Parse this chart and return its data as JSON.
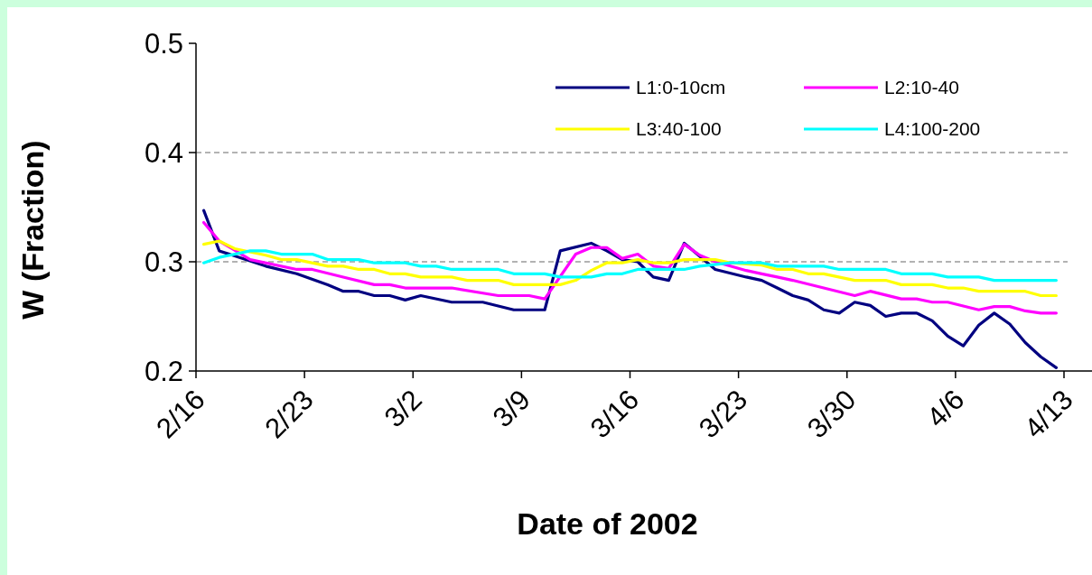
{
  "chart_data": {
    "type": "line",
    "xlabel": "Date of 2002",
    "ylabel": "W (Fraction)",
    "xlim": [
      "2002-02-16",
      "2002-04-13"
    ],
    "xticks": [
      {
        "value": "2002-02-16",
        "label": "2/16"
      },
      {
        "value": "2002-02-23",
        "label": "2/23"
      },
      {
        "value": "2002-03-02",
        "label": "3/2"
      },
      {
        "value": "2002-03-09",
        "label": "3/9"
      },
      {
        "value": "2002-03-16",
        "label": "3/16"
      },
      {
        "value": "2002-03-23",
        "label": "3/23"
      },
      {
        "value": "2002-03-30",
        "label": "3/30"
      },
      {
        "value": "2002-04-06",
        "label": "4/6"
      },
      {
        "value": "2002-04-13",
        "label": "4/13"
      }
    ],
    "ylim": [
      0.2,
      0.5
    ],
    "yticks": [
      0.2,
      0.3,
      0.4,
      0.5
    ],
    "grid": "y",
    "legend": "top right",
    "marker": "none",
    "line_style": "solid",
    "series": [
      {
        "name": "L1:0-10cm",
        "color": "#000080",
        "x": [
          "2002-02-16T12:00",
          "2002-02-17T12:00",
          "2002-02-20T12:00",
          "2002-02-22T12:00",
          "2002-02-24T12:00",
          "2002-02-25T12:00",
          "2002-02-26T12:00",
          "2002-02-27T12:00",
          "2002-02-28T12:00",
          "2002-03-01T12:00",
          "2002-03-02T12:00",
          "2002-03-04T12:00",
          "2002-03-06T12:00",
          "2002-03-08T12:00",
          "2002-03-10T12:00",
          "2002-03-11T12:00",
          "2002-03-13T12:00",
          "2002-03-14T12:00",
          "2002-03-15T12:00",
          "2002-03-16T12:00",
          "2002-03-17T12:00",
          "2002-03-18T12:00",
          "2002-03-19T12:00",
          "2002-03-21T12:00",
          "2002-03-23T12:00",
          "2002-03-24T12:00",
          "2002-03-25T12:00",
          "2002-03-26T12:00",
          "2002-03-27T12:00",
          "2002-03-28T12:00",
          "2002-03-29T12:00",
          "2002-03-30T12:00",
          "2002-03-31T12:00",
          "2002-04-01T12:00",
          "2002-04-02T12:00",
          "2002-04-03T12:00",
          "2002-04-04T12:00",
          "2002-04-05T12:00",
          "2002-04-06T12:00",
          "2002-04-07T12:00",
          "2002-04-08T12:00",
          "2002-04-09T12:00",
          "2002-04-10T12:00",
          "2002-04-11T12:00",
          "2002-04-12T12:00"
        ],
        "values": [
          0.347,
          0.31,
          0.296,
          0.289,
          0.279,
          0.273,
          0.273,
          0.269,
          0.269,
          0.265,
          0.269,
          0.263,
          0.263,
          0.256,
          0.256,
          0.31,
          0.317,
          0.31,
          0.302,
          0.3,
          0.286,
          0.283,
          0.317,
          0.293,
          0.286,
          0.283,
          0.276,
          0.269,
          0.265,
          0.256,
          0.253,
          0.263,
          0.26,
          0.25,
          0.253,
          0.253,
          0.246,
          0.232,
          0.223,
          0.242,
          0.253,
          0.243,
          0.226,
          0.213,
          0.203
        ]
      },
      {
        "name": "L2:10-40",
        "color": "#ff00ff",
        "x": [
          "2002-02-16T12:00",
          "2002-02-17T12:00",
          "2002-02-19T12:00",
          "2002-02-22T12:00",
          "2002-02-23T12:00",
          "2002-02-25T12:00",
          "2002-02-27T12:00",
          "2002-02-28T12:00",
          "2002-03-01T12:00",
          "2002-03-04T12:00",
          "2002-03-07T12:00",
          "2002-03-09T12:00",
          "2002-03-10T12:00",
          "2002-03-12T12:00",
          "2002-03-13T12:00",
          "2002-03-14T12:00",
          "2002-03-15T12:00",
          "2002-03-16T12:00",
          "2002-03-17T12:00",
          "2002-03-18T12:00",
          "2002-03-19T12:00",
          "2002-03-20T12:00",
          "2002-03-21T12:00",
          "2002-03-23T12:00",
          "2002-03-24T12:00",
          "2002-03-25T12:00",
          "2002-03-26T12:00",
          "2002-03-28T12:00",
          "2002-03-30T12:00",
          "2002-03-31T12:00",
          "2002-04-02T12:00",
          "2002-04-03T12:00",
          "2002-04-04T12:00",
          "2002-04-05T12:00",
          "2002-04-07T12:00",
          "2002-04-08T12:00",
          "2002-04-09T12:00",
          "2002-04-10T12:00",
          "2002-04-11T12:00",
          "2002-04-12T12:00"
        ],
        "values": [
          0.336,
          0.319,
          0.302,
          0.293,
          0.293,
          0.286,
          0.279,
          0.279,
          0.276,
          0.276,
          0.269,
          0.269,
          0.266,
          0.307,
          0.313,
          0.313,
          0.303,
          0.307,
          0.296,
          0.294,
          0.316,
          0.306,
          0.3,
          0.292,
          0.289,
          0.286,
          0.283,
          0.276,
          0.269,
          0.273,
          0.266,
          0.266,
          0.263,
          0.263,
          0.256,
          0.259,
          0.259,
          0.255,
          0.253,
          0.253
        ]
      },
      {
        "name": "L3:40-100",
        "color": "#ffff00",
        "x": [
          "2002-02-16T12:00",
          "2002-02-17T12:00",
          "2002-02-18T12:00",
          "2002-02-20T12:00",
          "2002-02-21T12:00",
          "2002-02-22T12:00",
          "2002-02-24T12:00",
          "2002-02-25T12:00",
          "2002-02-26T12:00",
          "2002-02-27T12:00",
          "2002-02-28T12:00",
          "2002-03-01T12:00",
          "2002-03-02T12:00",
          "2002-03-04T12:00",
          "2002-03-05T12:00",
          "2002-03-07T12:00",
          "2002-03-08T12:00",
          "2002-03-09T12:00",
          "2002-03-11T12:00",
          "2002-03-12T12:00",
          "2002-03-13T12:00",
          "2002-03-14T12:00",
          "2002-03-15T12:00",
          "2002-03-16T12:00",
          "2002-03-17T12:00",
          "2002-03-18T12:00",
          "2002-03-19T12:00",
          "2002-03-21T12:00",
          "2002-03-22T12:00",
          "2002-03-24T12:00",
          "2002-03-25T12:00",
          "2002-03-26T12:00",
          "2002-03-27T12:00",
          "2002-03-28T12:00",
          "2002-03-30T12:00",
          "2002-04-01T12:00",
          "2002-04-02T12:00",
          "2002-04-04T12:00",
          "2002-04-05T12:00",
          "2002-04-06T12:00",
          "2002-04-07T12:00",
          "2002-04-10T12:00",
          "2002-04-11T12:00",
          "2002-04-12T12:00"
        ],
        "values": [
          0.316,
          0.319,
          0.312,
          0.306,
          0.302,
          0.302,
          0.296,
          0.296,
          0.293,
          0.293,
          0.289,
          0.289,
          0.286,
          0.286,
          0.283,
          0.283,
          0.279,
          0.279,
          0.279,
          0.283,
          0.292,
          0.299,
          0.299,
          0.302,
          0.299,
          0.299,
          0.302,
          0.302,
          0.299,
          0.297,
          0.293,
          0.293,
          0.289,
          0.289,
          0.283,
          0.283,
          0.279,
          0.279,
          0.276,
          0.276,
          0.273,
          0.273,
          0.269,
          0.269
        ]
      },
      {
        "name": "L4:100-200",
        "color": "#00ffff",
        "x": [
          "2002-02-16T12:00",
          "2002-02-17T12:00",
          "2002-02-19T12:00",
          "2002-02-20T12:00",
          "2002-02-21T12:00",
          "2002-02-23T12:00",
          "2002-02-24T12:00",
          "2002-02-26T12:00",
          "2002-02-27T12:00",
          "2002-03-01T12:00",
          "2002-03-02T12:00",
          "2002-03-03T12:00",
          "2002-03-04T12:00",
          "2002-03-07T12:00",
          "2002-03-08T12:00",
          "2002-03-10T12:00",
          "2002-03-11T12:00",
          "2002-03-13T12:00",
          "2002-03-14T12:00",
          "2002-03-15T12:00",
          "2002-03-16T12:00",
          "2002-03-19T12:00",
          "2002-03-20T12:00",
          "2002-03-22T12:00",
          "2002-03-24T12:00",
          "2002-03-25T12:00",
          "2002-03-28T12:00",
          "2002-03-29T12:00",
          "2002-04-01T12:00",
          "2002-04-02T12:00",
          "2002-04-04T12:00",
          "2002-04-05T12:00",
          "2002-04-07T12:00",
          "2002-04-08T12:00",
          "2002-04-12T12:00"
        ],
        "values": [
          0.299,
          0.304,
          0.31,
          0.31,
          0.307,
          0.307,
          0.302,
          0.302,
          0.299,
          0.299,
          0.296,
          0.296,
          0.293,
          0.293,
          0.289,
          0.289,
          0.286,
          0.286,
          0.289,
          0.289,
          0.293,
          0.293,
          0.296,
          0.299,
          0.299,
          0.296,
          0.296,
          0.293,
          0.293,
          0.289,
          0.289,
          0.286,
          0.286,
          0.283,
          0.283
        ]
      }
    ]
  }
}
